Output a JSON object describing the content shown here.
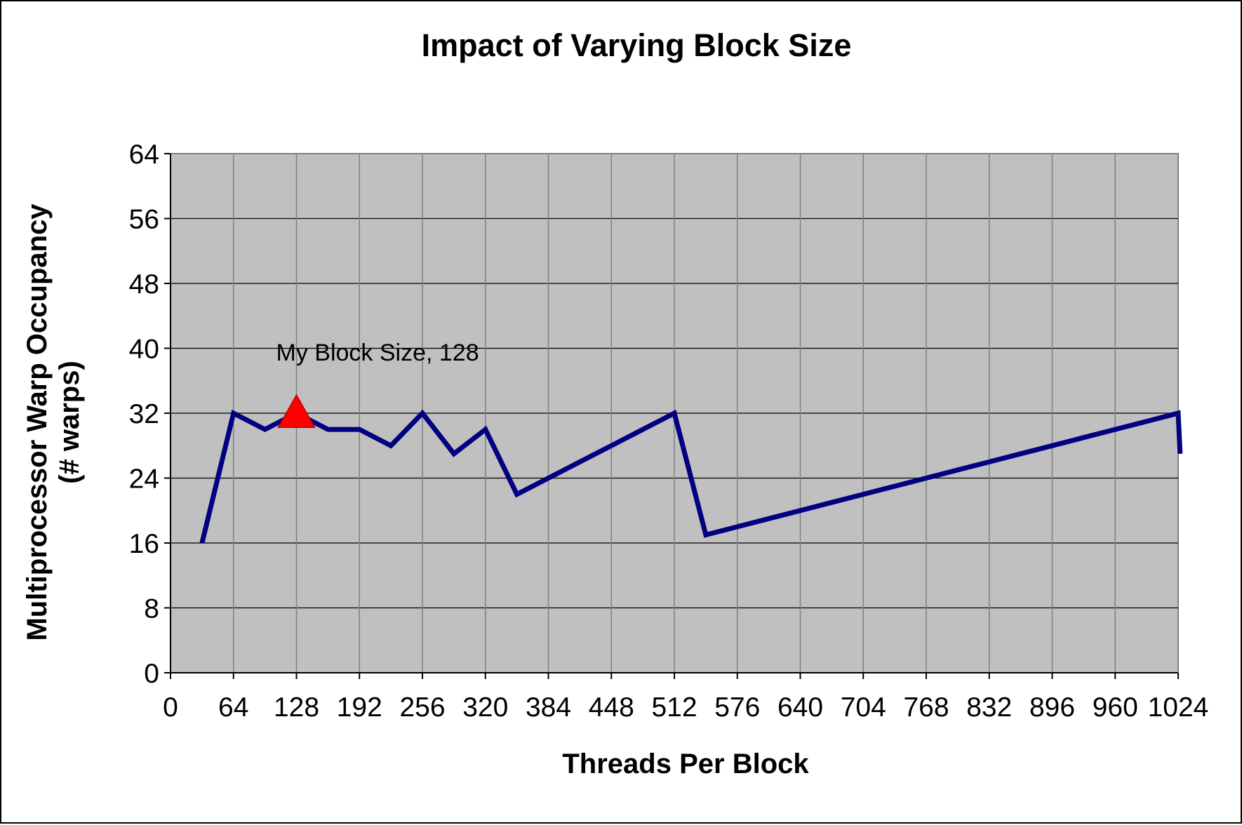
{
  "chart_data": {
    "type": "line",
    "title": "Impact of Varying Block Size",
    "xlabel": "Threads Per Block",
    "ylabel_line1": "Multiprocessor Warp Occupancy",
    "ylabel_line2": "(# warps)",
    "xlim": [
      0,
      1024
    ],
    "ylim": [
      0,
      64
    ],
    "xticks": [
      0,
      64,
      128,
      192,
      256,
      320,
      384,
      448,
      512,
      576,
      640,
      704,
      768,
      832,
      896,
      960,
      1024
    ],
    "yticks": [
      0,
      8,
      16,
      24,
      32,
      40,
      48,
      56,
      64
    ],
    "grid": true,
    "plot_background": "#c0c0c0",
    "series": [
      {
        "name": "Warp Occupancy",
        "color": "#000080",
        "x": [
          32,
          64,
          96,
          128,
          160,
          192,
          224,
          256,
          288,
          320,
          352,
          384,
          416,
          448,
          480,
          512,
          544,
          576,
          608,
          640,
          672,
          704,
          736,
          768,
          800,
          832,
          864,
          896,
          928,
          960,
          992,
          1024,
          1026
        ],
        "y": [
          16,
          32,
          30,
          32,
          30,
          30,
          28,
          32,
          27,
          30,
          22,
          24,
          26,
          28,
          30,
          32,
          17,
          18,
          19,
          20,
          21,
          22,
          23,
          24,
          25,
          26,
          27,
          28,
          29,
          30,
          31,
          32,
          27
        ]
      }
    ],
    "highlight": {
      "label": "My Block Size, 128",
      "x": 128,
      "y": 32,
      "marker": "triangle",
      "color": "#ff0000"
    }
  }
}
